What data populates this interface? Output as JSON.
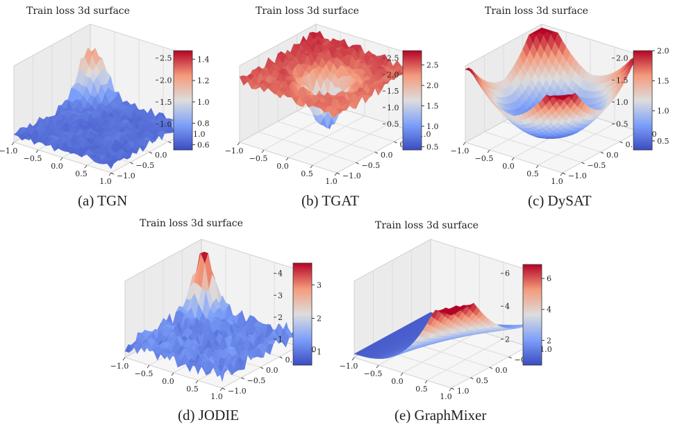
{
  "chart_data": [
    {
      "type": "surface3d",
      "title": "Train loss 3d surface",
      "caption": "(a) TGN",
      "shape": "noisy_flat_with_spikes",
      "x_ticks": [
        "−1.0",
        "−0.5",
        "0.0",
        "0.5",
        "1.0"
      ],
      "y_ticks": [
        "−1.0",
        "−0.5",
        "0.0",
        "0.5",
        "1.0"
      ],
      "z_ticks": [
        "1.0",
        "1.5",
        "2.0",
        "2.5"
      ],
      "colorbar_ticks": [
        "0.6",
        "0.8",
        "1.0",
        "1.2",
        "1.4"
      ],
      "colorbar_range": [
        0.55,
        1.48
      ],
      "colormap": "coolwarm"
    },
    {
      "type": "surface3d",
      "title": "Train loss 3d surface",
      "caption": "(b) TGAT",
      "shape": "plateau_with_central_well",
      "x_ticks": [
        "−1.0",
        "−0.5",
        "0.0",
        "0.5",
        "1.0"
      ],
      "y_ticks": [
        "−1.0",
        "−0.5",
        "0.0",
        "0.5",
        "1.0"
      ],
      "z_ticks": [
        "0.5",
        "1.0",
        "1.5",
        "2.0",
        "2.5"
      ],
      "colorbar_ticks": [
        "0.5",
        "1.0",
        "1.5",
        "2.0",
        "2.5"
      ],
      "colorbar_range": [
        0.42,
        2.85
      ],
      "colormap": "coolwarm"
    },
    {
      "type": "surface3d",
      "title": "Train loss 3d surface",
      "caption": "(c) DySAT",
      "shape": "smooth_bowl",
      "x_ticks": [
        "−1.0",
        "−0.5",
        "0.0",
        "0.5",
        "1.0"
      ],
      "y_ticks": [
        "−1.0",
        "−0.5",
        "0.0",
        "0.5",
        "1.0"
      ],
      "z_ticks": [
        "0.5",
        "1.0",
        "1.5",
        "2.0"
      ],
      "colorbar_ticks": [
        "0.5",
        "1.0",
        "1.5",
        "2.0"
      ],
      "colorbar_range": [
        0.35,
        2.0
      ],
      "colormap": "coolwarm"
    },
    {
      "type": "surface3d",
      "title": "Train loss 3d surface",
      "caption": "(d) JODIE",
      "shape": "noisy_flat_with_peak",
      "x_ticks": [
        "−1.0",
        "−0.5",
        "0.0",
        "0.5",
        "1.0"
      ],
      "y_ticks": [
        "−1.0",
        "−0.5",
        "0.0",
        "0.5",
        "1.0"
      ],
      "z_ticks": [
        "1",
        "2",
        "3",
        "4"
      ],
      "colorbar_ticks": [
        "1",
        "2",
        "3"
      ],
      "colorbar_range": [
        0.6,
        3.65
      ],
      "colormap": "coolwarm"
    },
    {
      "type": "surface3d",
      "title": "Train loss 3d surface",
      "caption": "(e) GraphMixer",
      "shape": "smooth_valley_rising_corner",
      "x_ticks": [
        "−1.0",
        "−0.5",
        "0.0",
        "0.5",
        "1.0"
      ],
      "y_ticks": [
        "1.0",
        "0.5",
        "0.0",
        "−0.5",
        "−1.0"
      ],
      "z_ticks": [
        "2",
        "4",
        "6"
      ],
      "colorbar_ticks": [
        "2",
        "4",
        "6"
      ],
      "colorbar_range": [
        0.4,
        6.9
      ],
      "colormap": "coolwarm"
    }
  ]
}
